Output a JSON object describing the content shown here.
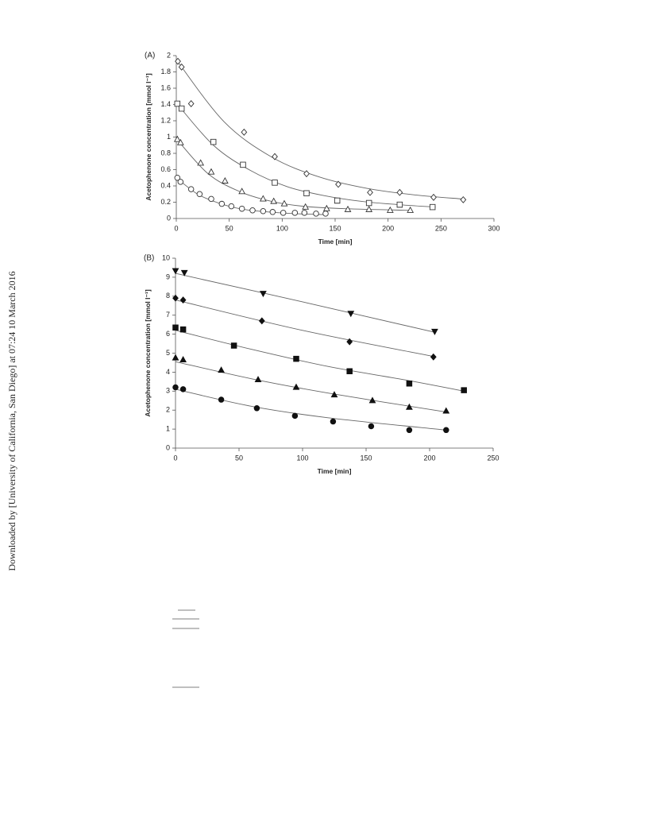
{
  "watermark": "Downloaded by [University of California, San Diego] at 07:24 10 March 2016",
  "chart_data": [
    {
      "type": "scatter",
      "panel_label": "(A)",
      "xlabel": "Time [min]",
      "ylabel": "Acetophenone concentration [mmol l⁻¹]",
      "xlim": [
        0,
        300
      ],
      "ylim": [
        0,
        2
      ],
      "xticks": [
        0,
        50,
        100,
        150,
        200,
        250,
        300
      ],
      "yticks": [
        0,
        0.2,
        0.4,
        0.6,
        0.8,
        1,
        1.2,
        1.4,
        1.6,
        1.8,
        2
      ],
      "series": [
        {
          "marker": "diamond",
          "filled": false,
          "color": "#333",
          "x": [
            1.5,
            5,
            14,
            64,
            93,
            123,
            153,
            183,
            211,
            243,
            271
          ],
          "values": [
            1.93,
            1.86,
            1.41,
            1.06,
            0.76,
            0.55,
            0.42,
            0.32,
            0.32,
            0.26,
            0.23
          ],
          "fit_x": [
            0,
            45,
            90,
            135,
            180,
            225,
            270
          ],
          "fit_values": [
            1.95,
            1.19,
            0.755,
            0.51,
            0.37,
            0.29,
            0.24
          ]
        },
        {
          "marker": "square",
          "filled": false,
          "color": "#333",
          "x": [
            1,
            5,
            35,
            63,
            93,
            123,
            152,
            182,
            211,
            242
          ],
          "values": [
            1.41,
            1.35,
            0.94,
            0.66,
            0.44,
            0.31,
            0.22,
            0.19,
            0.17,
            0.14
          ],
          "fit_x": [
            0,
            35,
            70,
            105,
            140,
            175,
            210,
            245
          ],
          "fit_values": [
            1.42,
            0.9,
            0.59,
            0.39,
            0.28,
            0.21,
            0.17,
            0.14
          ]
        },
        {
          "marker": "triangle-up",
          "filled": false,
          "color": "#333",
          "x": [
            1,
            4,
            23,
            33,
            46,
            62,
            82,
            92,
            102,
            122,
            142,
            162,
            182,
            202,
            221
          ],
          "values": [
            0.97,
            0.93,
            0.68,
            0.57,
            0.46,
            0.33,
            0.24,
            0.21,
            0.18,
            0.14,
            0.12,
            0.11,
            0.11,
            0.1,
            0.1
          ],
          "fit_x": [
            0,
            30,
            60,
            90,
            120,
            160,
            220
          ],
          "fit_values": [
            0.98,
            0.55,
            0.33,
            0.21,
            0.15,
            0.12,
            0.1
          ]
        },
        {
          "marker": "circle",
          "filled": false,
          "color": "#333",
          "x": [
            1,
            4,
            14,
            22,
            33,
            43,
            52,
            62,
            72,
            82,
            91,
            101,
            112,
            121,
            132,
            141
          ],
          "values": [
            0.5,
            0.45,
            0.36,
            0.3,
            0.24,
            0.18,
            0.15,
            0.12,
            0.1,
            0.09,
            0.08,
            0.07,
            0.07,
            0.07,
            0.06,
            0.06
          ],
          "fit_x": [
            0,
            20,
            40,
            60,
            80,
            110,
            140
          ],
          "fit_values": [
            0.5,
            0.3,
            0.19,
            0.12,
            0.087,
            0.06,
            0.048
          ]
        }
      ]
    },
    {
      "type": "scatter",
      "panel_label": "(B)",
      "xlabel": "Time [min]",
      "ylabel": "Acetophenone concentration [mmol l⁻¹]",
      "xlim": [
        0,
        250
      ],
      "ylim": [
        0,
        10
      ],
      "xticks": [
        0,
        50,
        100,
        150,
        200,
        250
      ],
      "yticks": [
        0,
        1,
        2,
        3,
        4,
        5,
        6,
        7,
        8,
        9,
        10
      ],
      "series": [
        {
          "marker": "triangle-down",
          "filled": true,
          "color": "#111",
          "x": [
            0,
            7,
            69,
            138,
            204
          ],
          "values": [
            9.35,
            9.25,
            8.15,
            7.1,
            6.15
          ],
          "fit_x": [
            0,
            100,
            204
          ],
          "fit_values": [
            9.2,
            7.7,
            6.1
          ]
        },
        {
          "marker": "diamond",
          "filled": true,
          "color": "#111",
          "x": [
            0,
            6,
            68,
            137,
            203
          ],
          "values": [
            7.9,
            7.8,
            6.7,
            5.6,
            4.8
          ],
          "fit_x": [
            0,
            100,
            205
          ],
          "fit_values": [
            7.8,
            6.2,
            4.8
          ]
        },
        {
          "marker": "square",
          "filled": true,
          "color": "#111",
          "x": [
            0,
            6,
            46,
            95,
            137,
            184,
            227
          ],
          "values": [
            6.35,
            6.25,
            5.4,
            4.7,
            4.05,
            3.4,
            3.05
          ],
          "fit_x": [
            0,
            60,
            120,
            180,
            227
          ],
          "fit_values": [
            6.2,
            5.2,
            4.3,
            3.6,
            3.0
          ]
        },
        {
          "marker": "triangle-up",
          "filled": true,
          "color": "#111",
          "x": [
            0,
            6,
            36,
            65,
            95,
            125,
            155,
            184,
            213
          ],
          "values": [
            4.75,
            4.65,
            4.1,
            3.6,
            3.2,
            2.8,
            2.5,
            2.15,
            1.95
          ],
          "fit_x": [
            0,
            60,
            120,
            213
          ],
          "fit_values": [
            4.55,
            3.65,
            2.9,
            1.9
          ]
        },
        {
          "marker": "circle",
          "filled": true,
          "color": "#111",
          "x": [
            0,
            6,
            36,
            64,
            94,
            124,
            154,
            184,
            213
          ],
          "values": [
            3.2,
            3.1,
            2.55,
            2.1,
            1.7,
            1.4,
            1.15,
            0.95,
            0.95
          ],
          "fit_x": [
            0,
            60,
            120,
            213
          ],
          "fit_values": [
            3.1,
            2.2,
            1.6,
            0.95
          ]
        }
      ]
    }
  ]
}
